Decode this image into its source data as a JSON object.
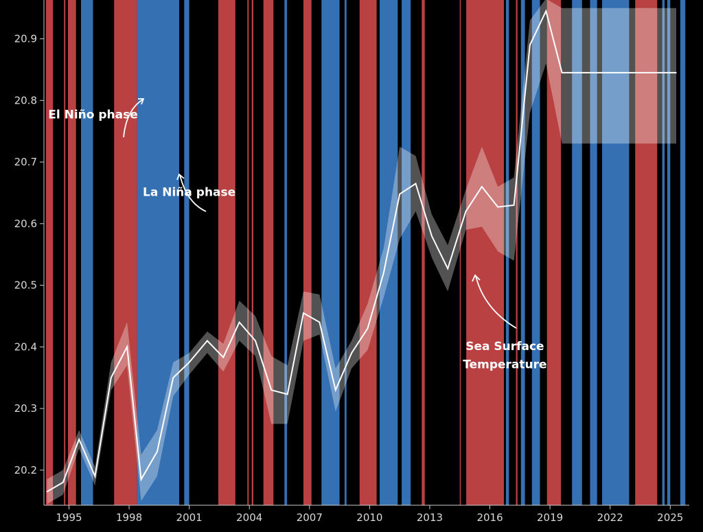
{
  "chart_data": {
    "type": "line",
    "title": "",
    "xlabel": "",
    "ylabel": "",
    "xlim": [
      1993.75,
      2025.95
    ],
    "ylim": [
      20.143,
      20.963
    ],
    "y_ticks": [
      20.2,
      20.3,
      20.4,
      20.5,
      20.6,
      20.7,
      20.8,
      20.9
    ],
    "x_ticks": [
      1995,
      1998,
      2001,
      2004,
      2007,
      2010,
      2013,
      2016,
      2019,
      2022,
      2025
    ],
    "grid": false,
    "colors": {
      "background": "#000000",
      "el_nino": "#b94141",
      "la_nina": "#3570b2",
      "line": "#ffffff",
      "band": "#ffffff"
    },
    "phases": [
      {
        "phase": "el_nino",
        "start": 1993.85,
        "end": 1994.2
      },
      {
        "phase": "el_nino",
        "start": 1994.75,
        "end": 1994.82
      },
      {
        "phase": "el_nino",
        "start": 1994.95,
        "end": 1995.35
      },
      {
        "phase": "la_nina",
        "start": 1995.6,
        "end": 1996.2
      },
      {
        "phase": "el_nino",
        "start": 1997.25,
        "end": 1998.4
      },
      {
        "phase": "la_nina",
        "start": 1998.4,
        "end": 2000.5
      },
      {
        "phase": "la_nina",
        "start": 2000.75,
        "end": 2001.0
      },
      {
        "phase": "el_nino",
        "start": 2002.45,
        "end": 2003.3
      },
      {
        "phase": "el_nino",
        "start": 2003.9,
        "end": 2003.97
      },
      {
        "phase": "el_nino",
        "start": 2004.12,
        "end": 2004.2
      },
      {
        "phase": "el_nino",
        "start": 2004.7,
        "end": 2005.2
      },
      {
        "phase": "la_nina",
        "start": 2005.75,
        "end": 2005.88
      },
      {
        "phase": "el_nino",
        "start": 2006.7,
        "end": 2007.1
      },
      {
        "phase": "la_nina",
        "start": 2007.6,
        "end": 2008.5
      },
      {
        "phase": "la_nina",
        "start": 2008.75,
        "end": 2008.85
      },
      {
        "phase": "el_nino",
        "start": 2009.5,
        "end": 2010.35
      },
      {
        "phase": "la_nina",
        "start": 2010.5,
        "end": 2011.4
      },
      {
        "phase": "la_nina",
        "start": 2011.6,
        "end": 2012.05
      },
      {
        "phase": "el_nino",
        "start": 2012.6,
        "end": 2012.75
      },
      {
        "phase": "el_nino",
        "start": 2014.5,
        "end": 2014.55
      },
      {
        "phase": "el_nino",
        "start": 2014.82,
        "end": 2016.7
      },
      {
        "phase": "la_nina",
        "start": 2016.8,
        "end": 2016.95
      },
      {
        "phase": "el_nino",
        "start": 2017.3,
        "end": 2017.38
      },
      {
        "phase": "la_nina",
        "start": 2017.55,
        "end": 2017.75
      },
      {
        "phase": "la_nina",
        "start": 2018.1,
        "end": 2018.5
      },
      {
        "phase": "el_nino",
        "start": 2018.85,
        "end": 2019.55
      },
      {
        "phase": "la_nina",
        "start": 2020.1,
        "end": 2020.6
      },
      {
        "phase": "la_nina",
        "start": 2021.0,
        "end": 2021.35
      },
      {
        "phase": "la_nina",
        "start": 2021.6,
        "end": 2022.95
      },
      {
        "phase": "el_nino",
        "start": 2023.25,
        "end": 2024.35
      },
      {
        "phase": "la_nina",
        "start": 2024.6,
        "end": 2024.72
      },
      {
        "phase": "la_nina",
        "start": 2024.85,
        "end": 2025.0
      },
      {
        "phase": "la_nina",
        "start": 2025.5,
        "end": 2025.75
      }
    ],
    "series": [
      {
        "x": [
          1993.9,
          1994.7,
          1995.5,
          1996.3,
          1997.1,
          1997.9,
          1998.6,
          1999.4,
          2000.2,
          2001.0,
          2001.9,
          2002.7,
          2003.5,
          2004.3,
          2005.1,
          2005.9,
          2006.7,
          2007.5,
          2008.3,
          2009.1,
          2009.9,
          2010.7,
          2011.5,
          2012.3,
          2013.1,
          2013.9,
          2014.8,
          2015.6,
          2016.4,
          2017.2,
          2018.0,
          2018.8,
          2019.6,
          2020.4,
          2021.2,
          2022.0,
          2022.8,
          2023.6,
          2024.4,
          2025.3
        ],
        "values": [
          20.165,
          20.18,
          20.25,
          20.19,
          20.35,
          20.4,
          20.185,
          20.23,
          20.35,
          20.375,
          20.41,
          20.383,
          20.44,
          20.41,
          20.33,
          20.323,
          20.455,
          20.44,
          20.33,
          20.39,
          20.43,
          20.52,
          20.648,
          20.665,
          20.58,
          20.527,
          20.62,
          20.66,
          20.627,
          20.63,
          20.89,
          20.945,
          20.845,
          20.845,
          20.845,
          20.845,
          20.845,
          20.845,
          20.845,
          20.845
        ],
        "lower": [
          20.145,
          20.16,
          20.235,
          20.175,
          20.33,
          20.37,
          20.15,
          20.19,
          20.32,
          20.355,
          20.39,
          20.36,
          20.41,
          20.385,
          20.275,
          20.275,
          20.41,
          20.42,
          20.295,
          20.365,
          20.395,
          20.48,
          20.575,
          20.62,
          20.545,
          20.49,
          20.59,
          20.595,
          20.555,
          20.54,
          20.78,
          20.86,
          20.73,
          20.73,
          20.73,
          20.73,
          20.73,
          20.73,
          20.73,
          20.73
        ],
        "upper": [
          20.185,
          20.2,
          20.265,
          20.205,
          20.375,
          20.44,
          20.225,
          20.265,
          20.375,
          20.39,
          20.425,
          20.405,
          20.475,
          20.45,
          20.385,
          20.37,
          20.49,
          20.485,
          20.365,
          20.41,
          20.47,
          20.56,
          20.725,
          20.71,
          20.615,
          20.565,
          20.655,
          20.725,
          20.66,
          20.675,
          20.93,
          20.965,
          20.95,
          20.95,
          20.95,
          20.95,
          20.95,
          20.95,
          20.95,
          20.95
        ]
      }
    ],
    "annotations": [
      {
        "text": "El Niño phase",
        "x": 1996.2,
        "y": 20.771
      },
      {
        "text": "La Niña phase",
        "x": 2001.0,
        "y": 20.645
      },
      {
        "text": "Sea Surface",
        "x": 2016.75,
        "y": 20.395
      },
      {
        "text": "Temperature",
        "x": 2016.75,
        "y": 20.365
      }
    ]
  }
}
